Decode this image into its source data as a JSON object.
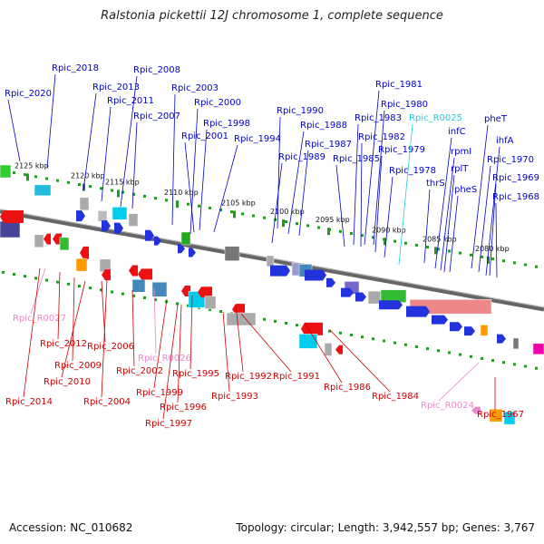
{
  "title": "Ralstonia pickettii 12J chromosome 1, complete sequence",
  "footer": {
    "accession": "Accession: NC_010682",
    "topology": "Topology: circular; Length: 3,942,557 bp; Genes: 3,767"
  },
  "colors": {
    "forward_label": "#0000cc",
    "reverse_label": "#cc0000",
    "rna_forward_label": "#22ccdd",
    "rna_reverse_label": "#ee88cc",
    "backbone": "#888888",
    "tick": "#229922"
  },
  "kbp_ticks": [
    "2125 kbp",
    "2120 kbp",
    "2115 kbp",
    "2110 kbp",
    "2105 kbp",
    "2100 kbp",
    "2095 kbp",
    "2090 kbp",
    "2085 kbp",
    "2080 kbp"
  ],
  "forward_labels": [
    "Rpic_2020",
    "Rpic_2018",
    "Rpic_2013",
    "Rpic_2008",
    "Rpic_2011",
    "Rpic_2007",
    "Rpic_2003",
    "Rpic_2000",
    "Rpic_1998",
    "Rpic_2001",
    "Rpic_1994",
    "Rpic_1990",
    "Rpic_1988",
    "Rpic_1987",
    "Rpic_1989",
    "Rpic_1981",
    "Rpic_1980",
    "Rpic_1983",
    "Rpic_1982",
    "Rpic_1979",
    "Rpic_1985",
    "Rpic_1978",
    "Rpic_R0025",
    "infC",
    "rpmI",
    "rplT",
    "thrS",
    "pheS",
    "pheT",
    "ihfA",
    "Rpic_1970",
    "Rpic_1969",
    "Rpic_1968"
  ],
  "reverse_labels": [
    "Rpic_R0027",
    "Rpic_2012",
    "Rpic_2009",
    "Rpic_2006",
    "Rpic_2010",
    "Rpic_R0026",
    "Rpic_2002",
    "Rpic_2014",
    "Rpic_2004",
    "Rpic_1995",
    "Rpic_1999",
    "Rpic_1992",
    "Rpic_1993",
    "Rpic_1996",
    "Rpic_1991",
    "Rpic_1997",
    "Rpic_1986",
    "Rpic_1984",
    "Rpic_R0024",
    "Rpic_1967"
  ]
}
